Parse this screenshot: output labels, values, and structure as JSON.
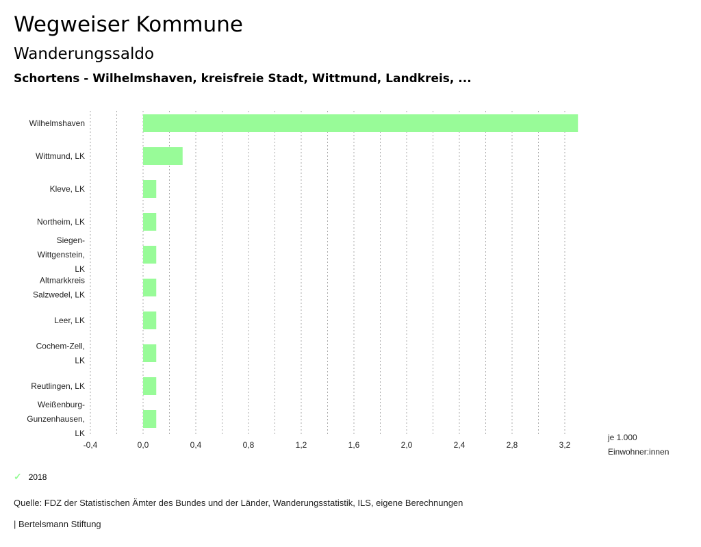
{
  "header": {
    "title": "Wegweiser Kommune",
    "subtitle": "Wanderungssaldo",
    "region": "Schortens - Wilhelmshaven, kreisfreie Stadt, Wittmund, Landkreis, ..."
  },
  "legend": {
    "label": "2018",
    "check_icon": "check-icon"
  },
  "footer": {
    "source": "Quelle: FDZ der Statistischen Ämter des Bundes und der Länder, Wanderungsstatistik, ILS, eigene Berechnungen",
    "brand": "| Bertelsmann Stiftung"
  },
  "chart_data": {
    "type": "bar",
    "orientation": "horizontal",
    "title": "Wanderungssaldo",
    "xlabel": [
      "je 1.000",
      "Einwohner:innen"
    ],
    "xlim": [
      -0.4,
      3.3
    ],
    "xticks": [
      -0.4,
      -0.2,
      0.0,
      0.2,
      0.4,
      0.6,
      0.8,
      1.0,
      1.2,
      1.4,
      1.6,
      1.8,
      2.0,
      2.2,
      2.4,
      2.6,
      2.8,
      3.0,
      3.2
    ],
    "xtick_labels": [
      "-0,4",
      "0,0",
      "0,4",
      "0,8",
      "1,2",
      "1,6",
      "2,0",
      "2,4",
      "2,8",
      "3,2"
    ],
    "xtick_label_values": [
      -0.4,
      0.0,
      0.4,
      0.8,
      1.2,
      1.6,
      2.0,
      2.4,
      2.8,
      3.2
    ],
    "grid": true,
    "bar_color": "#98fb98",
    "categories": [
      [
        "Wilhelmshaven"
      ],
      [
        "Wittmund, LK"
      ],
      [
        "Kleve, LK"
      ],
      [
        "Northeim, LK"
      ],
      [
        "Siegen-",
        "Wittgenstein,",
        "LK"
      ],
      [
        "Altmarkkreis",
        "Salzwedel, LK"
      ],
      [
        "Leer, LK"
      ],
      [
        "Cochem-Zell,",
        "LK"
      ],
      [
        "Reutlingen, LK"
      ],
      [
        "Weißenburg-",
        "Gunzenhausen,",
        "LK"
      ]
    ],
    "series": [
      {
        "name": "2018",
        "values": [
          3.3,
          0.3,
          0.1,
          0.1,
          0.1,
          0.1,
          0.1,
          0.1,
          0.1,
          0.1
        ]
      }
    ]
  }
}
